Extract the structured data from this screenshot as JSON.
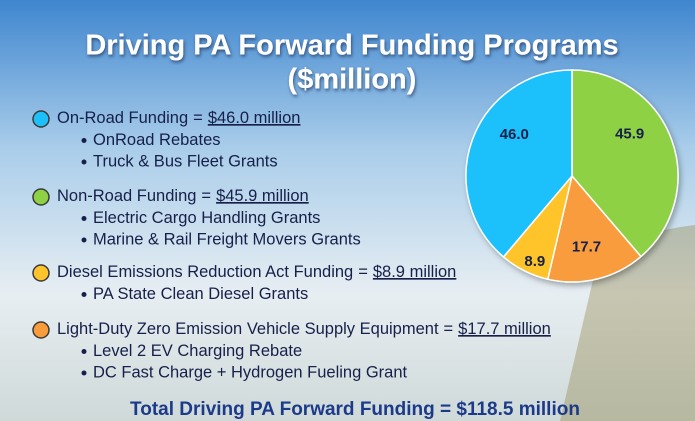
{
  "chart_data": {
    "type": "pie",
    "title": "Driving PA Forward Funding Programs",
    "subtitle": "($million)",
    "categories": [
      "On-Road Funding",
      "Non-Road Funding",
      "Diesel Emissions Reduction Act Funding",
      "Light-Duty Zero Emission Vehicle Supply Equipment"
    ],
    "values": [
      46.0,
      45.9,
      8.9,
      17.7
    ],
    "value_labels": [
      "46.0",
      "45.9",
      "8.9",
      "17.7"
    ],
    "colors": [
      "#1ec0fb",
      "#8fd145",
      "#ffc42c",
      "#f89c3c"
    ],
    "slice_order": [
      1,
      3,
      2,
      0
    ],
    "equals": "=",
    "amounts": [
      "$46.0 million",
      "$45.9 million",
      "$8.9 million",
      "$17.7 million"
    ],
    "items": [
      [
        "OnRoad Rebates",
        "Truck & Bus Fleet Grants"
      ],
      [
        "Electric Cargo Handling Grants",
        "Marine & Rail Freight Movers Grants"
      ],
      [
        "PA State Clean Diesel Grants"
      ],
      [
        "Level 2 EV Charging Rebate",
        "DC Fast Charge + Hydrogen Fueling Grant"
      ]
    ],
    "total": "Total Driving PA Forward Funding = $118.5 million"
  }
}
